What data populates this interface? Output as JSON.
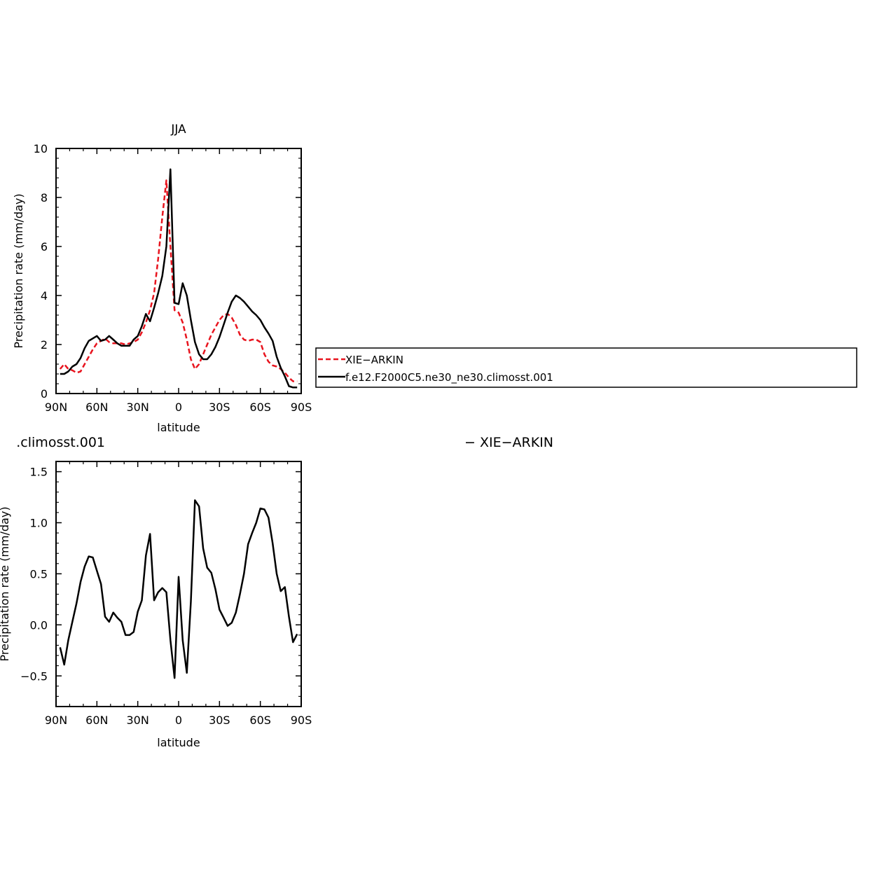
{
  "chart_data": [
    {
      "type": "line",
      "title": "JJA",
      "xlabel": "latitude",
      "ylabel": "Precipitation rate (mm/day)",
      "xlim": [
        90,
        -90
      ],
      "ylim": [
        0,
        10
      ],
      "xticks": [
        {
          "value": 90,
          "label": "90N"
        },
        {
          "value": 60,
          "label": "60N"
        },
        {
          "value": 30,
          "label": "30N"
        },
        {
          "value": 0,
          "label": "0"
        },
        {
          "value": -30,
          "label": "30S"
        },
        {
          "value": -60,
          "label": "60S"
        },
        {
          "value": -90,
          "label": "90S"
        }
      ],
      "yticks": [
        {
          "value": 0,
          "label": "0"
        },
        {
          "value": 2,
          "label": "2"
        },
        {
          "value": 4,
          "label": "4"
        },
        {
          "value": 6,
          "label": "6"
        },
        {
          "value": 8,
          "label": "8"
        },
        {
          "value": 10,
          "label": "10"
        }
      ],
      "legend": {
        "placement": "right"
      },
      "series": [
        {
          "name": "XIE−ARKIN",
          "color": "#e8141e",
          "dash": "dashed",
          "x": [
            87,
            84,
            81,
            78,
            75,
            72,
            69,
            66,
            63,
            60,
            57,
            54,
            51,
            48,
            45,
            42,
            39,
            36,
            33,
            30,
            27,
            24,
            21,
            18,
            15,
            12,
            9,
            6,
            3,
            0,
            -3,
            -6,
            -9,
            -12,
            -15,
            -18,
            -21,
            -24,
            -27,
            -30,
            -33,
            -36,
            -39,
            -42,
            -45,
            -48,
            -51,
            -54,
            -57,
            -60,
            -63,
            -66,
            -69,
            -72,
            -75,
            -78,
            -81,
            -84,
            -87
          ],
          "y": [
            1.0,
            1.2,
            1.0,
            0.95,
            0.85,
            0.9,
            1.2,
            1.5,
            1.8,
            2.05,
            2.15,
            2.25,
            2.1,
            2.05,
            2.05,
            2.05,
            2.0,
            2.05,
            2.1,
            2.2,
            2.5,
            2.9,
            3.4,
            4.1,
            5.5,
            7.2,
            8.7,
            6.0,
            3.4,
            3.3,
            2.9,
            2.2,
            1.4,
            1.0,
            1.2,
            1.6,
            2.0,
            2.4,
            2.7,
            3.0,
            3.2,
            3.25,
            3.1,
            2.8,
            2.4,
            2.2,
            2.15,
            2.2,
            2.2,
            2.1,
            1.6,
            1.3,
            1.15,
            1.1,
            1.0,
            0.85,
            0.65,
            0.5,
            0.5
          ]
        },
        {
          "name": "f.e12.F2000C5.ne30_ne30.climosst.001",
          "color": "#000000",
          "dash": "solid",
          "x": [
            87,
            84,
            81,
            78,
            75,
            72,
            69,
            66,
            63,
            60,
            57,
            54,
            51,
            48,
            45,
            42,
            39,
            36,
            33,
            30,
            27,
            24,
            21,
            18,
            15,
            12,
            9,
            6,
            3,
            0,
            -3,
            -6,
            -9,
            -12,
            -15,
            -18,
            -21,
            -24,
            -27,
            -30,
            -33,
            -36,
            -39,
            -42,
            -45,
            -48,
            -51,
            -54,
            -57,
            -60,
            -63,
            -66,
            -69,
            -72,
            -75,
            -78,
            -81,
            -84,
            -87
          ],
          "y": [
            0.8,
            0.8,
            0.9,
            1.1,
            1.2,
            1.45,
            1.85,
            2.15,
            2.25,
            2.35,
            2.15,
            2.2,
            2.35,
            2.2,
            2.05,
            1.95,
            1.95,
            1.95,
            2.2,
            2.35,
            2.75,
            3.25,
            2.95,
            3.5,
            4.1,
            4.8,
            6.0,
            9.15,
            3.7,
            3.65,
            4.5,
            4.0,
            3.0,
            2.1,
            1.6,
            1.4,
            1.4,
            1.6,
            1.9,
            2.3,
            2.8,
            3.3,
            3.75,
            4.0,
            3.9,
            3.75,
            3.55,
            3.35,
            3.2,
            3.0,
            2.7,
            2.45,
            2.15,
            1.5,
            1.05,
            0.7,
            0.3,
            0.25,
            0.25
          ]
        }
      ]
    },
    {
      "type": "line",
      "title": ".climosst.001",
      "subtitle": "− XIE−ARKIN",
      "xlabel": "latitude",
      "ylabel": "Precipitation rate (mm/day)",
      "xlim": [
        90,
        -90
      ],
      "ylim": [
        -0.8,
        1.6
      ],
      "xticks": [
        {
          "value": 90,
          "label": "90N"
        },
        {
          "value": 60,
          "label": "60N"
        },
        {
          "value": 30,
          "label": "30N"
        },
        {
          "value": 0,
          "label": "0"
        },
        {
          "value": -30,
          "label": "30S"
        },
        {
          "value": -60,
          "label": "60S"
        },
        {
          "value": -90,
          "label": "90S"
        }
      ],
      "yticks": [
        {
          "value": -0.5,
          "label": "−0.5"
        },
        {
          "value": 0.0,
          "label": "0.0"
        },
        {
          "value": 0.5,
          "label": "0.5"
        },
        {
          "value": 1.0,
          "label": "1.0"
        },
        {
          "value": 1.5,
          "label": "1.5"
        }
      ],
      "series": [
        {
          "color": "#000000",
          "dash": "solid",
          "x": [
            87,
            84,
            81,
            78,
            75,
            72,
            69,
            66,
            63,
            60,
            57,
            54,
            51,
            48,
            45,
            42,
            39,
            36,
            33,
            30,
            27,
            24,
            21,
            18,
            15,
            12,
            9,
            6,
            3,
            0,
            -3,
            -6,
            -9,
            -12,
            -15,
            -18,
            -21,
            -24,
            -27,
            -30,
            -33,
            -36,
            -39,
            -42,
            -45,
            -48,
            -51,
            -54,
            -57,
            -60,
            -63,
            -66,
            -69,
            -72,
            -75,
            -78,
            -81,
            -84,
            -87
          ],
          "y": [
            -0.22,
            -0.39,
            -0.15,
            0.03,
            0.21,
            0.42,
            0.57,
            0.67,
            0.66,
            0.53,
            0.4,
            0.08,
            0.03,
            0.12,
            0.07,
            0.03,
            -0.1,
            -0.1,
            -0.07,
            0.13,
            0.24,
            0.68,
            0.89,
            0.24,
            0.32,
            0.36,
            0.32,
            -0.15,
            -0.52,
            0.47,
            -0.15,
            -0.47,
            0.23,
            1.22,
            1.16,
            0.75,
            0.56,
            0.51,
            0.35,
            0.15,
            0.07,
            -0.01,
            0.02,
            0.12,
            0.3,
            0.5,
            0.79,
            0.9,
            1.0,
            1.14,
            1.13,
            1.05,
            0.8,
            0.5,
            0.33,
            0.37,
            0.08,
            -0.17,
            -0.09
          ]
        }
      ]
    }
  ]
}
